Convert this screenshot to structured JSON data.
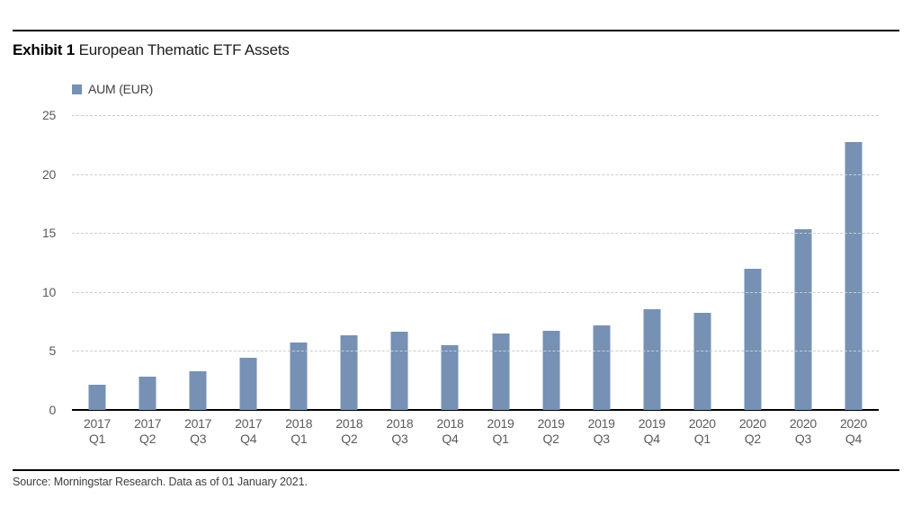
{
  "header": {
    "exhibit_label": "Exhibit 1",
    "title": "European Thematic ETF Assets"
  },
  "legend": {
    "label": "AUM (EUR)"
  },
  "source_line": "Source: Morningstar Research. Data as of 01 January 2021.",
  "colors": {
    "bar": "#7691b4",
    "axis": "#000000",
    "gridline": "#cccccc",
    "tick_text": "#58595b"
  },
  "chart_data": {
    "type": "bar",
    "title": "European Thematic ETF Assets",
    "series_name": "AUM (EUR)",
    "categories": [
      "2017 Q1",
      "2017 Q2",
      "2017 Q3",
      "2017 Q4",
      "2018 Q1",
      "2018 Q2",
      "2018 Q3",
      "2018 Q4",
      "2019 Q1",
      "2019 Q2",
      "2019 Q3",
      "2019 Q4",
      "2020 Q1",
      "2020 Q2",
      "2020 Q3",
      "2020 Q4"
    ],
    "values": [
      2.1,
      2.8,
      3.3,
      4.4,
      5.7,
      6.3,
      6.6,
      5.5,
      6.5,
      6.7,
      7.2,
      8.5,
      8.2,
      12.0,
      15.3,
      22.7
    ],
    "xlabel": "",
    "ylabel": "",
    "ylim": [
      0,
      25
    ],
    "yticks": [
      25,
      20,
      15,
      10,
      5,
      0
    ],
    "grid": "horizontal-dashed",
    "legend_position": "top-left",
    "bar_color": "#7691b4"
  }
}
